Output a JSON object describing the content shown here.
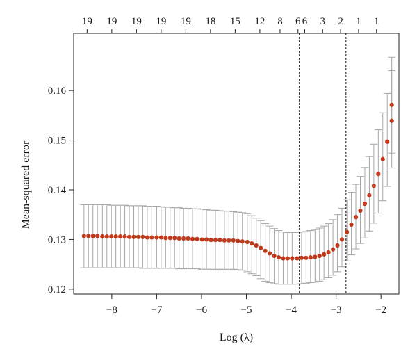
{
  "chart_data": {
    "type": "scatter",
    "xlabel": "Log (λ)",
    "ylabel": "Mean-squared error",
    "xlim": [
      -8.85,
      -1.6
    ],
    "ylim": [
      0.119,
      0.1715
    ],
    "x_ticks": [
      -8,
      -7,
      -6,
      -5,
      -4,
      -3,
      -2
    ],
    "x_tick_labels": [
      "−8",
      "−7",
      "−6",
      "−5",
      "−4",
      "−3",
      "−2"
    ],
    "y_ticks": [
      0.12,
      0.13,
      0.14,
      0.15,
      0.16
    ],
    "y_tick_labels": [
      "0.12",
      "0.13",
      "0.14",
      "0.15",
      "0.16"
    ],
    "top_axis": {
      "x": [
        -8.55,
        -8.0,
        -7.45,
        -6.9,
        -6.35,
        -5.8,
        -5.25,
        -4.7,
        -4.25,
        -3.85,
        -3.7,
        -3.3,
        -2.9,
        -2.5,
        -2.1
      ],
      "labels": [
        "19",
        "19",
        "19",
        "19",
        "19",
        "18",
        "15",
        "12",
        "8",
        "6",
        "6",
        "3",
        "2",
        "1",
        "1"
      ]
    },
    "vlines": [
      -3.82,
      -2.78
    ],
    "grid": false,
    "colors": {
      "point": "#c0391b",
      "errorbar": "#a6a6a6",
      "vline": "#111111",
      "axis": "#222222"
    },
    "series": [
      {
        "x": [
          -8.62,
          -8.52,
          -8.42,
          -8.32,
          -8.21,
          -8.11,
          -8.01,
          -7.91,
          -7.81,
          -7.71,
          -7.61,
          -7.51,
          -7.41,
          -7.31,
          -7.21,
          -7.11,
          -7.0,
          -6.9,
          -6.8,
          -6.7,
          -6.6,
          -6.5,
          -6.4,
          -6.3,
          -6.2,
          -6.1,
          -5.99,
          -5.89,
          -5.79,
          -5.69,
          -5.59,
          -5.49,
          -5.39,
          -5.29,
          -5.19,
          -5.09,
          -4.98,
          -4.88,
          -4.78,
          -4.68,
          -4.58,
          -4.48,
          -4.38,
          -4.28,
          -4.18,
          -4.08,
          -3.98,
          -3.87,
          -3.77,
          -3.67,
          -3.57,
          -3.47,
          -3.37,
          -3.27,
          -3.17,
          -3.07,
          -2.97,
          -2.87,
          -2.76,
          -2.66,
          -2.56,
          -2.46,
          -2.36,
          -2.26,
          -2.16,
          -2.06,
          -1.96,
          -1.86,
          -1.76
        ],
        "y": [
          0.1307,
          0.1307,
          0.1307,
          0.1307,
          0.1306,
          0.1306,
          0.1306,
          0.1306,
          0.1306,
          0.1306,
          0.1305,
          0.1305,
          0.1305,
          0.1305,
          0.1304,
          0.1304,
          0.1304,
          0.1304,
          0.1303,
          0.1303,
          0.1303,
          0.1302,
          0.1302,
          0.1302,
          0.1301,
          0.1301,
          0.13,
          0.13,
          0.1299,
          0.1299,
          0.1299,
          0.1298,
          0.1298,
          0.1298,
          0.1297,
          0.1296,
          0.1295,
          0.1292,
          0.1288,
          0.1283,
          0.1277,
          0.1272,
          0.1267,
          0.1264,
          0.1262,
          0.1262,
          0.1262,
          0.1262,
          0.1263,
          0.1263,
          0.1264,
          0.1265,
          0.1267,
          0.127,
          0.1274,
          0.128,
          0.1288,
          0.13,
          0.1315,
          0.133,
          0.1345,
          0.1358,
          0.1372,
          0.1389,
          0.1408,
          0.1432,
          0.1462,
          0.1497,
          0.1539
        ],
        "y_lower": [
          0.1243,
          0.1243,
          0.1243,
          0.1243,
          0.1243,
          0.1243,
          0.1243,
          0.1243,
          0.1243,
          0.1243,
          0.1243,
          0.1243,
          0.1243,
          0.1242,
          0.1242,
          0.1242,
          0.1242,
          0.1242,
          0.1242,
          0.1242,
          0.1242,
          0.1241,
          0.1241,
          0.1241,
          0.1241,
          0.1241,
          0.124,
          0.124,
          0.124,
          0.124,
          0.124,
          0.124,
          0.124,
          0.124,
          0.1239,
          0.1238,
          0.1235,
          0.1231,
          0.1227,
          0.1221,
          0.1216,
          0.1213,
          0.1211,
          0.121,
          0.121,
          0.121,
          0.121,
          0.121,
          0.1211,
          0.1212,
          0.1213,
          0.1214,
          0.1216,
          0.1219,
          0.1223,
          0.1228,
          0.1235,
          0.1245,
          0.1257,
          0.1269,
          0.1281,
          0.1292,
          0.1303,
          0.1317,
          0.1333,
          0.1353,
          0.1378,
          0.1407,
          0.1444
        ],
        "y_upper": [
          0.137,
          0.137,
          0.137,
          0.137,
          0.137,
          0.137,
          0.1369,
          0.1369,
          0.1369,
          0.1369,
          0.1368,
          0.1368,
          0.1368,
          0.1368,
          0.1367,
          0.1367,
          0.1367,
          0.1366,
          0.1365,
          0.1365,
          0.1364,
          0.1364,
          0.1363,
          0.1363,
          0.1362,
          0.1362,
          0.1361,
          0.136,
          0.1359,
          0.1359,
          0.1358,
          0.1357,
          0.1357,
          0.1356,
          0.1355,
          0.1354,
          0.1352,
          0.1348,
          0.1343,
          0.1338,
          0.1332,
          0.1327,
          0.1322,
          0.1318,
          0.1315,
          0.1314,
          0.1314,
          0.1314,
          0.1315,
          0.1316,
          0.1318,
          0.132,
          0.1323,
          0.1327,
          0.1332,
          0.134,
          0.135,
          0.1363,
          0.138,
          0.1395,
          0.1411,
          0.1427,
          0.1445,
          0.1467,
          0.1492,
          0.1521,
          0.1555,
          0.1594,
          0.164
        ]
      },
      {
        "x": [
          -1.76
        ],
        "y": [
          0.1571
        ],
        "y_lower": [
          0.1474
        ],
        "y_upper": [
          0.1667
        ]
      }
    ]
  }
}
